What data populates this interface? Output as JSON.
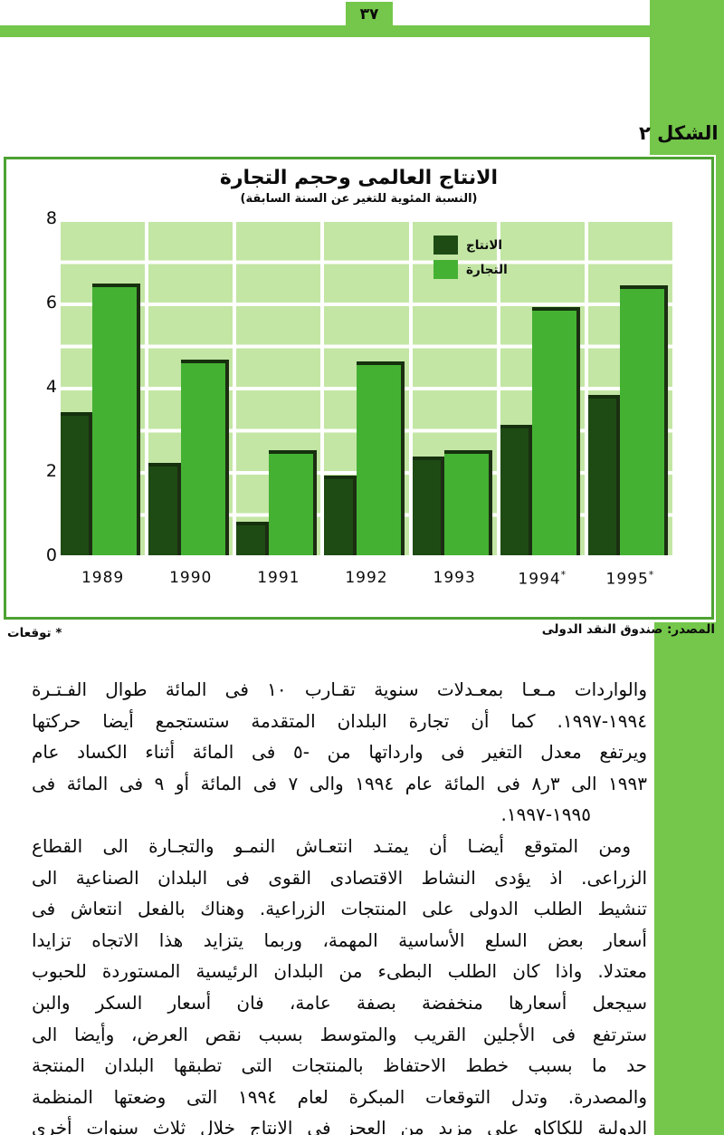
{
  "page": {
    "number": "٣٧",
    "figure_label": "الشكل ٢"
  },
  "colors": {
    "page_green": "#74c74a",
    "plot_background": "#c3e6a4",
    "production_bar": "#1e4b14",
    "trade_bar": "#44b133",
    "gridline": "#ffffff",
    "chart_border": "#4da233",
    "text": "#0b0b0b"
  },
  "chart": {
    "title": "الانتاج العالمى وحجم التجارة",
    "subtitle": "(النسبة المئوية للتغير عن السنة السابقة)",
    "source": "المصدر: صندوق النقد الدولى",
    "footnote": "* توقعات"
  },
  "chart_data": {
    "type": "bar",
    "categories": [
      "1989",
      "1990",
      "1991",
      "1992",
      "1993",
      "1994*",
      "1995*"
    ],
    "series": [
      {
        "name": "الانتاج",
        "color": "#1e4b14",
        "values": [
          3.4,
          2.2,
          0.8,
          1.9,
          2.35,
          3.1,
          3.8
        ]
      },
      {
        "name": "التجارة",
        "color": "#44b133",
        "values": [
          6.45,
          4.65,
          2.5,
          4.6,
          2.5,
          5.9,
          6.4
        ]
      }
    ],
    "title": "الانتاج العالمى وحجم التجارة",
    "subtitle": "(النسبة المئوية للتغير عن السنة السابقة)",
    "xlabel": "",
    "ylabel": "",
    "ylim": [
      0,
      8
    ],
    "y_ticks": [
      0,
      2,
      4,
      6,
      8
    ],
    "grid": "white gridlines every 1 unit, vertical white separators between year groups",
    "legend_position": "inside plot, upper center-right",
    "legend": [
      "الانتاج",
      "التجارة"
    ]
  },
  "body": {
    "lines": [
      {
        "text": "والواردات مـعـا بمعـدلات سنوية تقـارب ١٠ فى المائة طوال الفـتـرة"
      },
      {
        "text": "١٩٩٤-١٩٩٧. كما أن تجارة البلدان المتقدمة ستستجمع أيضا حركتها"
      },
      {
        "text": "ويرتفع معدل التغير فى وارداتها من -٥ فى المائة أثناء الكساد عام"
      },
      {
        "text": "١٩٩٣ الى ٣ر٨ فى المائة عام ١٩٩٤ والى ٧ فى المائة أو ٩ فى المائة فى"
      },
      {
        "text": "١٩٩٥-١٩٩٧.",
        "end": true,
        "indent": 62
      },
      {
        "text": "ومن المتوقع أيضـا أن يمتـد انتعـاش النمـو والتجـارة الى القطاع",
        "indent": 18
      },
      {
        "text": "الزراعى. اذ يؤدى النشاط الاقتصادى القوى فى البلدان الصناعية الى"
      },
      {
        "text": "تنشيط الطلب الدولى على المنتجات الزراعية. وهناك بالفعل انتعاش فى"
      },
      {
        "text": "أسعار بعض السلع الأساسية المهمة، وربما يتزايد هذا الاتجاه تزايدا"
      },
      {
        "text": "معتدلا. واذا كان الطلب البطىء من البلدان الرئيسية المستوردة للحبوب"
      },
      {
        "text": "سيجعل أسعارها منخفضة بصفة عامة، فان أسعار السكر والبن"
      },
      {
        "text": "سترتفع فى الأجلين القريب والمتوسط بسبب نقص العرض، وأيضا الى"
      },
      {
        "text": "حد ما بسبب خطط الاحتفاظ بالمنتجات التى تطبقها البلدان المنتجة"
      },
      {
        "text": "والمصدرة. وتدل التوقعات المبكرة لعام ١٩٩٤ التى وضعتها المنظمة"
      },
      {
        "text": "الدولية للكاكاو على مزيد من العجز فى الانتاج خلال ثلاث سنوات أخرى"
      }
    ]
  }
}
